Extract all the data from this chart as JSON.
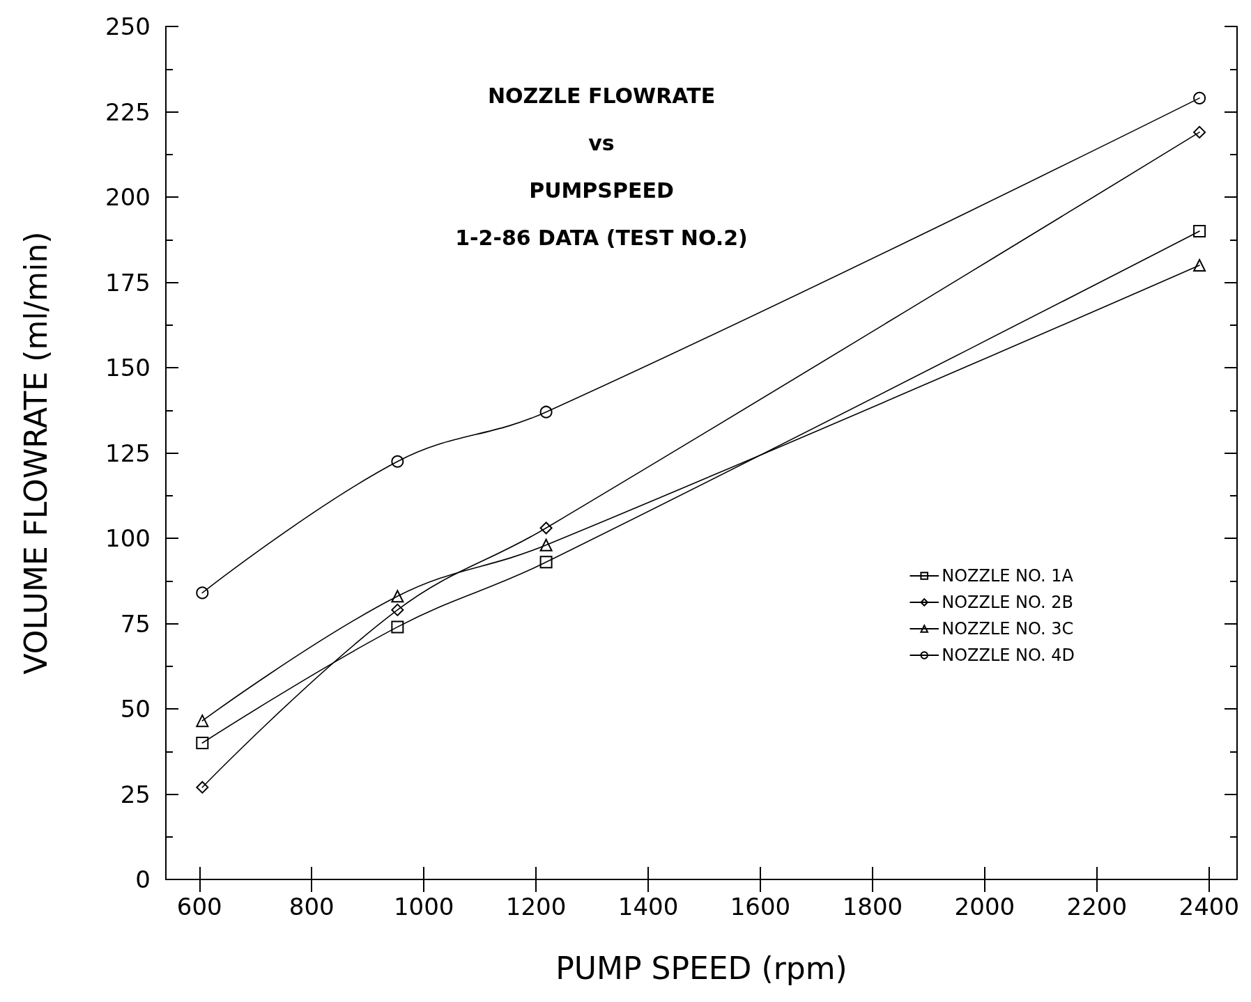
{
  "chart_data": {
    "type": "line",
    "title": "NOZZLE FLOWRATE\nvs\nPUMPSPEED\n1-2-86 DATA (TEST NO.2)",
    "xlabel": "PUMP SPEED (rpm)",
    "ylabel": "VOLUME FLOWRATE (ml/min)",
    "x": [
      605,
      953,
      1218,
      2383
    ],
    "series": [
      {
        "name": "NOZZLE NO. 1A",
        "color": "#000000",
        "marker": "square",
        "values": [
          40,
          74,
          93,
          190
        ]
      },
      {
        "name": "NOZZLE NO. 2B",
        "color": "#000000",
        "marker": "diamond",
        "values": [
          27,
          79,
          103,
          219
        ]
      },
      {
        "name": "NOZZLE NO. 3C",
        "color": "#000000",
        "marker": "triangle",
        "values": [
          46.5,
          83,
          98,
          180
        ]
      },
      {
        "name": "NOZZLE NO. 4D",
        "color": "#000000",
        "marker": "circle",
        "values": [
          84,
          122.5,
          137,
          229
        ]
      }
    ],
    "xlim": [
      540,
      2450
    ],
    "xticks": [
      600,
      800,
      1000,
      1200,
      1400,
      1600,
      1800,
      2000,
      2200,
      2400
    ],
    "ylim": [
      0,
      250
    ],
    "yticks": [
      0,
      25,
      50,
      75,
      100,
      125,
      150,
      175,
      200,
      225,
      250
    ],
    "grid": false,
    "legend": "bottom right",
    "line_style": "solid"
  }
}
